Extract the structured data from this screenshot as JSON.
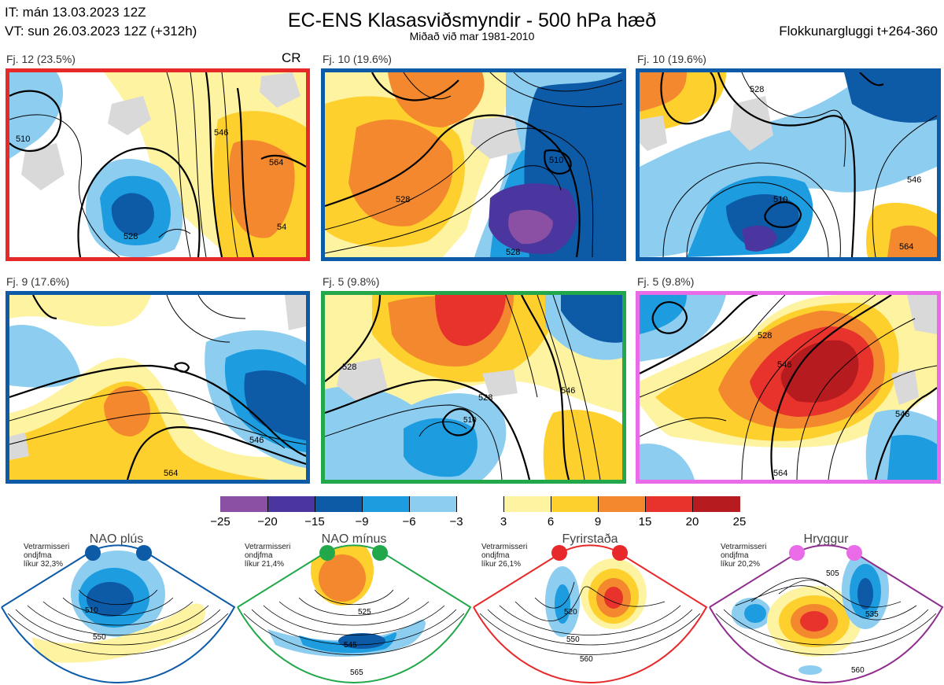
{
  "header": {
    "init_line": "IT: mán 13.03.2023 12Z",
    "valid_line": "VT: sun 26.03.2023 12Z  (+312h)",
    "title": "EC-ENS Klasasviðsmyndir - 500 hPa hæð",
    "subtitle": "Miðað við mar 1981-2010",
    "window": "Flokkunargluggi t+264-360"
  },
  "panels": [
    {
      "label": "Fj. 12 (23.5%)",
      "tag": "CR",
      "border": "#e8292a",
      "contours": [
        "528",
        "510",
        "546",
        "564",
        "528",
        "546",
        "54"
      ]
    },
    {
      "label": "Fj. 10 (19.6%)",
      "tag": "",
      "border": "#0d5aa7",
      "contours": [
        "510",
        "528",
        "528",
        "546",
        "528"
      ]
    },
    {
      "label": "Fj. 10 (19.6%)",
      "tag": "",
      "border": "#0d5aa7",
      "contours": [
        "528",
        "510",
        "528",
        "546",
        "564"
      ]
    },
    {
      "label": "Fj. 9 (17.6%)",
      "tag": "",
      "border": "#0d5aa7",
      "contours": [
        "528",
        "546",
        "546",
        "564"
      ]
    },
    {
      "label": "Fj. 5 (9.8%)",
      "tag": "",
      "border": "#22a84a",
      "contours": [
        "528",
        "528",
        "510",
        "546"
      ]
    },
    {
      "label": "Fj. 5 (9.8%)",
      "tag": "",
      "border": "#e96be8",
      "contours": [
        "546",
        "528",
        "546",
        "546",
        "564"
      ]
    }
  ],
  "colorbar": {
    "colors": [
      "#8b4fa3",
      "#4b36a0",
      "#0d5aa7",
      "#1d9de0",
      "#8ccdf0",
      "#ffffff",
      "#fef3a0",
      "#fdd02d",
      "#f3882e",
      "#e8332c",
      "#b61b1f"
    ],
    "ticks": [
      "−25",
      "−20",
      "−15",
      "−9",
      "−6",
      "−3",
      "3",
      "6",
      "9",
      "15",
      "20",
      "25"
    ]
  },
  "regimes": [
    {
      "name": "NAO plús",
      "note": [
        "Vetrarmisseri",
        "ondjfma",
        "líkur 32,3%"
      ],
      "color": "#0d5aa7",
      "labels": [
        "510",
        "550"
      ]
    },
    {
      "name": "NAO mínus",
      "note": [
        "Vetrarmisseri",
        "ondjfma",
        "líkur 21,4%"
      ],
      "color": "#22a84a",
      "labels": [
        "525",
        "545",
        "565"
      ]
    },
    {
      "name": "Fyrirstaða",
      "note": [
        "Vetrarmisseri",
        "ondjfma",
        "líkur 26,1%"
      ],
      "color": "#e8292a",
      "labels": [
        "520",
        "550",
        "560"
      ]
    },
    {
      "name": "Hryggur",
      "note": [
        "Vetrarmisseri",
        "ondjfma",
        "líkur 20,2%"
      ],
      "color": "#e96be8",
      "labels": [
        "505",
        "535",
        "560"
      ]
    }
  ]
}
